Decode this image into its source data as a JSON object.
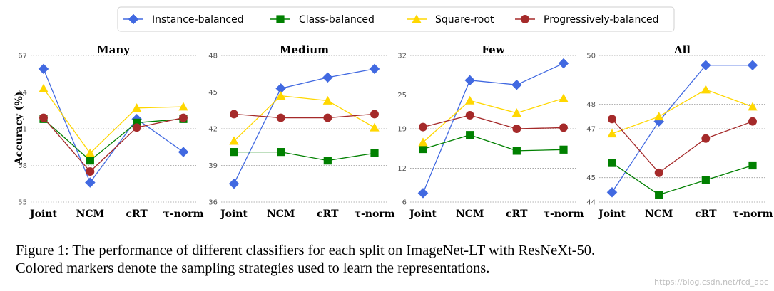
{
  "chart_data": {
    "type": "line",
    "ylabel": "Accuracy (%)",
    "categories": [
      "Joint",
      "NCM",
      "cRT",
      "τ-norm"
    ],
    "legend": {
      "placement": "top-center",
      "entries": [
        {
          "name": "Instance-balanced",
          "color": "#4169e1",
          "marker": "diamond"
        },
        {
          "name": "Class-balanced",
          "color": "#008000",
          "marker": "square"
        },
        {
          "name": "Square-root",
          "color": "#ffd700",
          "marker": "triangle"
        },
        {
          "name": "Progressively-balanced",
          "color": "#a52a2a",
          "marker": "circle"
        }
      ]
    },
    "panels": [
      {
        "title": "Many",
        "ylim": [
          55,
          67
        ],
        "yticks": [
          55,
          58,
          61,
          64,
          67
        ],
        "series": [
          {
            "name": "Instance-balanced",
            "values": [
              65.9,
              56.6,
              61.8,
              59.1
            ]
          },
          {
            "name": "Class-balanced",
            "values": [
              61.8,
              58.4,
              61.5,
              61.8
            ]
          },
          {
            "name": "Square-root",
            "values": [
              64.3,
              59.0,
              62.7,
              62.8
            ]
          },
          {
            "name": "Progressively-balanced",
            "values": [
              61.9,
              57.5,
              61.1,
              61.9
            ]
          }
        ]
      },
      {
        "title": "Medium",
        "ylim": [
          36,
          48
        ],
        "yticks": [
          36,
          39,
          42,
          45,
          48
        ],
        "series": [
          {
            "name": "Instance-balanced",
            "values": [
              37.5,
              45.3,
              46.2,
              46.9
            ]
          },
          {
            "name": "Class-balanced",
            "values": [
              40.1,
              40.1,
              39.4,
              40.0
            ]
          },
          {
            "name": "Square-root",
            "values": [
              41.0,
              44.7,
              44.3,
              42.1
            ]
          },
          {
            "name": "Progressively-balanced",
            "values": [
              43.2,
              42.9,
              42.9,
              43.2
            ]
          }
        ]
      },
      {
        "title": "Few",
        "ylim": [
          6,
          32
        ],
        "yticks": [
          6,
          12,
          19,
          25,
          32
        ],
        "series": [
          {
            "name": "Instance-balanced",
            "values": [
              7.6,
              27.6,
              26.8,
              30.6
            ]
          },
          {
            "name": "Class-balanced",
            "values": [
              15.4,
              17.9,
              15.1,
              15.3
            ]
          },
          {
            "name": "Square-root",
            "values": [
              16.6,
              24.0,
              21.8,
              24.4
            ]
          },
          {
            "name": "Progressively-balanced",
            "values": [
              19.3,
              21.4,
              19.0,
              19.2
            ]
          }
        ]
      },
      {
        "title": "All",
        "ylim": [
          44,
          50
        ],
        "yticks": [
          44,
          45,
          47,
          48,
          50
        ],
        "series": [
          {
            "name": "Instance-balanced",
            "values": [
              44.4,
              47.3,
              49.6,
              49.6
            ]
          },
          {
            "name": "Class-balanced",
            "values": [
              45.6,
              44.3,
              44.9,
              45.5
            ]
          },
          {
            "name": "Square-root",
            "values": [
              46.8,
              47.5,
              48.6,
              47.9
            ]
          },
          {
            "name": "Progressively-balanced",
            "values": [
              47.4,
              45.2,
              46.6,
              47.3
            ]
          }
        ]
      }
    ]
  },
  "caption": {
    "line1": "Figure 1: The performance of different classifiers for each split on ImageNet-LT with ResNeXt-50.",
    "line2": "Colored markers denote the sampling strategies used to learn the representations."
  },
  "watermark": "https://blog.csdn.net/fcd_abc"
}
